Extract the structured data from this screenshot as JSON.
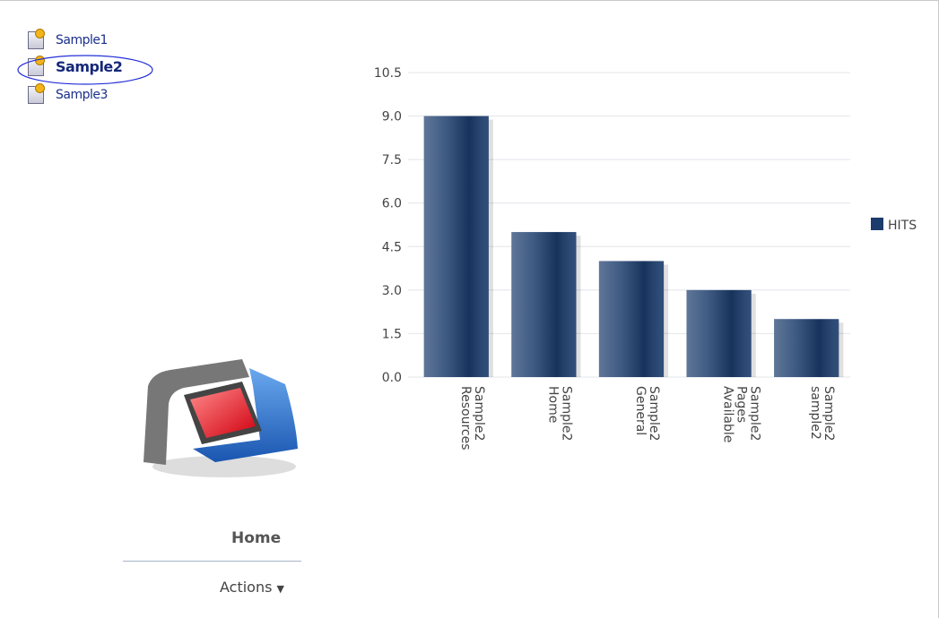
{
  "links": [
    "Sample1",
    "Sample2",
    "Sample3"
  ],
  "nav": {
    "home": "Home",
    "actions": "Actions"
  },
  "chart_data": {
    "type": "bar",
    "categories": [
      "Resources Sample2",
      "Home Sample2",
      "General Sample2",
      "Available Pages Sample2",
      "sample2 Sample2"
    ],
    "series": [
      {
        "name": "HITS",
        "color": "#1b3c6c",
        "values": [
          9,
          5,
          4,
          3,
          2
        ]
      }
    ],
    "ylim": [
      0,
      10.5
    ],
    "yticks": [
      {
        "value": 0,
        "label": "0.0"
      },
      1.5,
      {
        "value": 3,
        "label": "3.0"
      },
      4.5,
      {
        "value": 6,
        "label": "6.0"
      },
      7.5,
      {
        "value": 9,
        "label": "9.0"
      },
      10.5
    ],
    "grid": true,
    "legend": "right"
  }
}
